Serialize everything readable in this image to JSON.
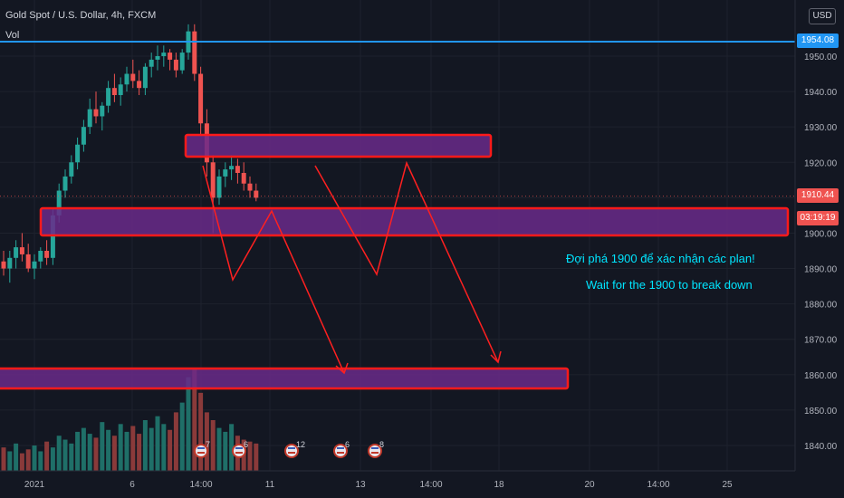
{
  "header": {
    "symbol_title": "Gold Spot / U.S. Dollar, 4h, FXCM",
    "indicator": "Vol",
    "currency_button": "USD"
  },
  "colors": {
    "background": "#131722",
    "up": "#26a69a",
    "down": "#ef5350",
    "blue_line": "#2196f3",
    "zone_fill": "#6a2a8a",
    "zone_border": "#ff1a1a",
    "arrow": "#ff2020",
    "note": "#00e5ff",
    "axis_text": "#b2b5be"
  },
  "annotations": {
    "note_vi": "Đợi phá 1900 để xác nhận các plan!",
    "note_en": "Wait for the 1900 to break down"
  },
  "price_tags": {
    "resistance": "1954.08",
    "last_price": "1910.44",
    "countdown": "03:19:19"
  },
  "chart_data": {
    "type": "candlestick",
    "title": "Gold Spot / U.S. Dollar, 4h, FXCM",
    "y_ticks": [
      "1950.00",
      "1940.00",
      "1930.00",
      "1920.00",
      "1910.00",
      "1900.00",
      "1890.00",
      "1880.00",
      "1870.00",
      "1860.00",
      "1850.00",
      "1840.00"
    ],
    "x_ticks": [
      "2021",
      "6",
      "14:00",
      "11",
      "13",
      "14:00",
      "18",
      "20",
      "14:00",
      "25"
    ],
    "ylim": [
      1836,
      1962
    ],
    "horizontal_line": 1954.08,
    "last_price": 1910.44,
    "zones": [
      {
        "from_bar": 0,
        "to_bar": 1,
        "low": 1857,
        "high": 1862
      },
      {
        "from_bar": 7,
        "to_bar": 21,
        "low": 1900,
        "high": 1908
      },
      {
        "from_bar": 33,
        "to_bar": 86,
        "low": 1921.5,
        "high": 1927.5
      },
      {
        "from_bar": 45,
        "to_bar": 86,
        "low": 1899,
        "high": 1907
      },
      {
        "from_bar": 0,
        "to_bar": 125,
        "low": 1857,
        "high": 1862
      }
    ],
    "candles": [
      [
        1892,
        1895,
        1888,
        1890
      ],
      [
        1890,
        1895,
        1886,
        1893
      ],
      [
        1893,
        1898,
        1890,
        1896
      ],
      [
        1896,
        1900,
        1892,
        1894
      ],
      [
        1894,
        1897,
        1889,
        1890
      ],
      [
        1890,
        1894,
        1887,
        1892
      ],
      [
        1892,
        1896,
        1890,
        1895
      ],
      [
        1895,
        1898,
        1891,
        1893
      ],
      [
        1893,
        1907,
        1891,
        1905
      ],
      [
        1905,
        1914,
        1903,
        1912
      ],
      [
        1912,
        1918,
        1910,
        1916
      ],
      [
        1916,
        1922,
        1914,
        1920
      ],
      [
        1920,
        1927,
        1918,
        1925
      ],
      [
        1925,
        1932,
        1923,
        1930
      ],
      [
        1930,
        1938,
        1928,
        1935
      ],
      [
        1935,
        1940,
        1931,
        1933
      ],
      [
        1933,
        1937,
        1929,
        1936
      ],
      [
        1936,
        1943,
        1934,
        1941
      ],
      [
        1941,
        1945,
        1937,
        1939
      ],
      [
        1939,
        1944,
        1936,
        1942
      ],
      [
        1942,
        1947,
        1940,
        1945
      ],
      [
        1945,
        1949,
        1941,
        1943
      ],
      [
        1943,
        1946,
        1939,
        1941
      ],
      [
        1941,
        1948,
        1939,
        1947
      ],
      [
        1947,
        1951,
        1944,
        1949
      ],
      [
        1949,
        1953,
        1946,
        1950
      ],
      [
        1950,
        1953,
        1947,
        1951
      ],
      [
        1951,
        1952,
        1946,
        1949
      ],
      [
        1949,
        1951,
        1944,
        1946
      ],
      [
        1946,
        1952,
        1945,
        1951
      ],
      [
        1951,
        1959,
        1949,
        1957
      ],
      [
        1957,
        1959,
        1943,
        1945
      ],
      [
        1945,
        1947,
        1928,
        1931
      ],
      [
        1931,
        1935,
        1916,
        1920
      ],
      [
        1920,
        1922,
        1900,
        1910
      ],
      [
        1910,
        1918,
        1908,
        1916
      ],
      [
        1916,
        1920,
        1913,
        1918
      ],
      [
        1918,
        1922,
        1915,
        1919
      ],
      [
        1919,
        1921,
        1914,
        1917
      ],
      [
        1917,
        1920,
        1912,
        1914
      ],
      [
        1914,
        1916,
        1910,
        1912
      ],
      [
        1912,
        1914,
        1909,
        1910
      ]
    ],
    "volume": [
      12,
      10,
      14,
      9,
      11,
      13,
      10,
      15,
      12,
      18,
      16,
      14,
      20,
      22,
      19,
      17,
      25,
      21,
      18,
      24,
      20,
      23,
      19,
      26,
      22,
      28,
      24,
      21,
      30,
      35,
      48,
      52,
      40,
      30,
      26,
      22,
      20,
      24,
      18,
      16,
      15,
      14
    ]
  }
}
